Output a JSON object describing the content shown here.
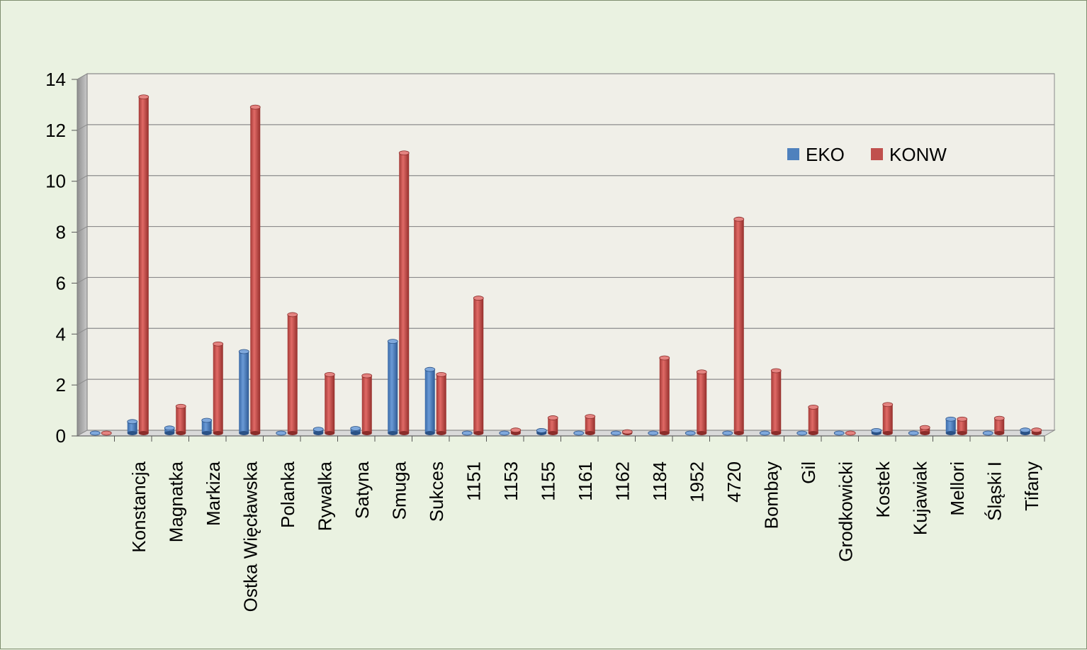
{
  "chart_data": {
    "type": "bar",
    "title": "",
    "xlabel": "",
    "ylabel": "",
    "ylim": [
      0,
      14
    ],
    "yticks": [
      0,
      2,
      4,
      6,
      8,
      10,
      12,
      14
    ],
    "grid": true,
    "legend_position": "upper-right",
    "categories": [
      "",
      "Konstancja",
      "Magnatka",
      "Markiza",
      "Ostka Więcławska",
      "Polanka",
      "Rywalka",
      "Satyna",
      "Smuga",
      "Sukces",
      "1151",
      "1153",
      "1155",
      "1161",
      "1162",
      "1184",
      "1952",
      "4720",
      "Bombay",
      "Gil",
      "Grodkowicki",
      "Kostek",
      "Kujawiak",
      "Mellori",
      "Śląski I",
      "Tifany"
    ],
    "series": [
      {
        "name": "EKO",
        "color": "#4f81bd",
        "values": [
          0,
          0.45,
          0.2,
          0.5,
          3.2,
          0,
          0.15,
          0.18,
          3.6,
          2.5,
          0,
          0,
          0.1,
          0,
          0,
          0,
          0,
          0,
          0,
          0,
          0,
          0.1,
          0,
          0.55,
          0,
          0.12
        ]
      },
      {
        "name": "KONW",
        "color": "#c0504d",
        "values": [
          0,
          13.2,
          1.05,
          3.5,
          12.8,
          4.65,
          2.3,
          2.25,
          11.0,
          2.3,
          5.3,
          0.12,
          0.6,
          0.65,
          0.05,
          2.95,
          2.4,
          8.4,
          2.45,
          1.02,
          0,
          1.12,
          0.22,
          0.55,
          0.58,
          0.12
        ]
      }
    ]
  }
}
